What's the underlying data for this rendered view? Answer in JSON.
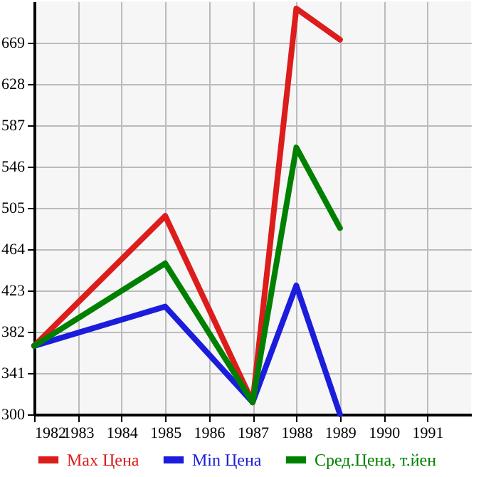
{
  "chart_data": {
    "type": "line",
    "x": [
      1982,
      1985,
      1987,
      1988,
      1989
    ],
    "series": [
      {
        "name": "Max Цена",
        "color": "#dd1c1c",
        "values": [
          368,
          497,
          312,
          703,
          672
        ]
      },
      {
        "name": "Min Цена",
        "color": "#1c1cdd",
        "values": [
          368,
          407,
          312,
          428,
          300
        ]
      },
      {
        "name": "Сред.Цена, т.йен",
        "color": "#008000",
        "values": [
          368,
          450,
          312,
          565,
          485
        ]
      }
    ],
    "xlim": [
      1982,
      1992
    ],
    "xticks": [
      1982,
      1983,
      1984,
      1985,
      1986,
      1987,
      1988,
      1989,
      1990,
      1991
    ],
    "ylim": [
      300,
      710
    ],
    "yticks": [
      300,
      341,
      382,
      423,
      464,
      505,
      546,
      587,
      628,
      669
    ],
    "grid": true,
    "legend": "bottom",
    "marker": "none",
    "line_style": "solid"
  }
}
